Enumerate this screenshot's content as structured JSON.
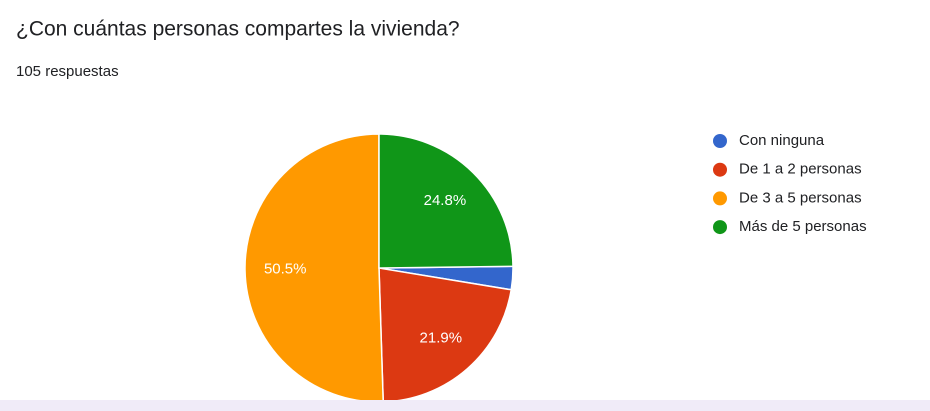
{
  "chart_data": {
    "type": "pie",
    "title": "¿Con cuántas personas compartes la vivienda?",
    "subtitle": "105 respuestas",
    "categories": [
      "Con ninguna",
      "De 1 a 2 personas",
      "De 3 a 5 personas",
      "Más de 5 personas"
    ],
    "values": [
      2.8,
      21.9,
      50.5,
      24.8
    ],
    "value_labels": [
      null,
      "21.9%",
      "50.5%",
      "24.8%"
    ],
    "colors": [
      "#3366cc",
      "#dc3912",
      "#ff9900",
      "#109618"
    ],
    "legend": "right"
  }
}
